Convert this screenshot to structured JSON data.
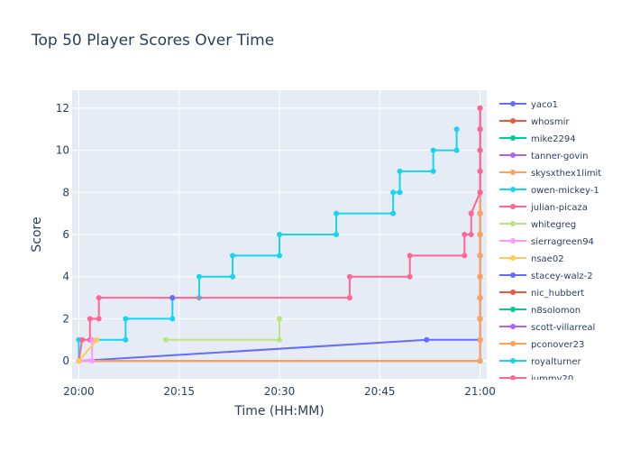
{
  "chart_data": {
    "type": "line",
    "title": "Top 50 Player Scores Over Time",
    "xlabel": "Time (HH:MM)",
    "ylabel": "Score",
    "x_ticks": [
      "20:00",
      "20:15",
      "20:30",
      "20:45",
      "21:00"
    ],
    "y_ticks": [
      0,
      2,
      4,
      6,
      8,
      10,
      12
    ],
    "xlim": [
      "19:59:00",
      "21:01:00"
    ],
    "ylim": [
      -0.85,
      12.85
    ],
    "grid": true,
    "legend_position": "right",
    "series": [
      {
        "name": "yaco1",
        "color": "#636efa",
        "points": [
          [
            "20:00:00",
            0
          ],
          [
            "20:52:00",
            1
          ],
          [
            "21:00:00",
            1
          ],
          [
            "21:00:00",
            2
          ],
          [
            "21:00:00",
            3
          ],
          [
            "21:00:00",
            4
          ],
          [
            "21:00:00",
            5
          ],
          [
            "21:00:00",
            6
          ],
          [
            "21:00:00",
            7
          ],
          [
            "21:00:00",
            8
          ],
          [
            "21:00:00",
            9
          ],
          [
            "21:00:00",
            10
          ],
          [
            "21:00:00",
            11
          ],
          [
            "21:00:00",
            12
          ]
        ]
      },
      {
        "name": "whosmir",
        "color": "#ef553b",
        "points": [
          [
            "20:00:00",
            0
          ],
          [
            "21:00:00",
            0
          ],
          [
            "21:00:00",
            1
          ],
          [
            "21:00:00",
            2
          ],
          [
            "21:00:00",
            3
          ],
          [
            "21:00:00",
            4
          ],
          [
            "21:00:00",
            5
          ],
          [
            "21:00:00",
            6
          ],
          [
            "21:00:00",
            7
          ],
          [
            "21:00:00",
            8
          ],
          [
            "21:00:00",
            9
          ],
          [
            "21:00:00",
            10
          ],
          [
            "21:00:00",
            11
          ],
          [
            "21:00:00",
            12
          ]
        ]
      },
      {
        "name": "mike2294",
        "color": "#00cc96",
        "points": [
          [
            "20:00:00",
            0
          ],
          [
            "21:00:00",
            0
          ],
          [
            "21:00:00",
            1
          ],
          [
            "21:00:00",
            2
          ],
          [
            "21:00:00",
            3
          ],
          [
            "21:00:00",
            4
          ],
          [
            "21:00:00",
            5
          ],
          [
            "21:00:00",
            6
          ],
          [
            "21:00:00",
            7
          ],
          [
            "21:00:00",
            8
          ],
          [
            "21:00:00",
            9
          ],
          [
            "21:00:00",
            10
          ],
          [
            "21:00:00",
            11
          ],
          [
            "21:00:00",
            12
          ]
        ]
      },
      {
        "name": "tanner-govin",
        "color": "#ab63fa",
        "points": [
          [
            "20:00:00",
            0
          ],
          [
            "21:00:00",
            0
          ],
          [
            "21:00:00",
            1
          ],
          [
            "21:00:00",
            2
          ],
          [
            "21:00:00",
            3
          ],
          [
            "21:00:00",
            4
          ],
          [
            "21:00:00",
            5
          ],
          [
            "21:00:00",
            6
          ],
          [
            "21:00:00",
            7
          ],
          [
            "21:00:00",
            8
          ],
          [
            "21:00:00",
            9
          ],
          [
            "21:00:00",
            10
          ],
          [
            "21:00:00",
            11
          ],
          [
            "21:00:00",
            12
          ]
        ]
      },
      {
        "name": "skysxthex1limit",
        "color": "#ffa15a",
        "points": [
          [
            "20:00:00",
            0
          ],
          [
            "21:00:00",
            0
          ],
          [
            "21:00:00",
            1
          ],
          [
            "21:00:00",
            2
          ],
          [
            "21:00:00",
            3
          ],
          [
            "21:00:00",
            4
          ],
          [
            "21:00:00",
            5
          ],
          [
            "21:00:00",
            6
          ],
          [
            "21:00:00",
            7
          ],
          [
            "21:00:00",
            8
          ],
          [
            "21:00:00",
            9
          ],
          [
            "21:00:00",
            10
          ],
          [
            "21:00:00",
            11
          ],
          [
            "21:00:00",
            12
          ]
        ]
      },
      {
        "name": "owen-mickey-1",
        "color": "#19d3f3",
        "points": [
          [
            "20:00:00",
            0
          ],
          [
            "20:00:00",
            1
          ],
          [
            "20:07:00",
            1
          ],
          [
            "20:07:00",
            2
          ],
          [
            "20:14:00",
            2
          ],
          [
            "20:14:00",
            3
          ],
          [
            "20:18:00",
            3
          ],
          [
            "20:18:00",
            4
          ],
          [
            "20:23:00",
            4
          ],
          [
            "20:23:00",
            5
          ],
          [
            "20:30:00",
            5
          ],
          [
            "20:30:00",
            6
          ],
          [
            "20:38:30",
            6
          ],
          [
            "20:38:30",
            7
          ],
          [
            "20:47:00",
            7
          ],
          [
            "20:47:00",
            8
          ],
          [
            "20:48:00",
            8
          ],
          [
            "20:48:00",
            9
          ],
          [
            "20:53:00",
            9
          ],
          [
            "20:53:00",
            10
          ],
          [
            "20:56:30",
            10
          ],
          [
            "20:56:30",
            11
          ]
        ]
      },
      {
        "name": "julian-picaza",
        "color": "#ff6692",
        "points": [
          [
            "20:00:00",
            0
          ],
          [
            "20:00:30",
            1
          ],
          [
            "20:01:40",
            1
          ],
          [
            "20:01:40",
            2
          ],
          [
            "20:03:00",
            2
          ],
          [
            "20:03:00",
            3
          ],
          [
            "20:40:30",
            3
          ],
          [
            "20:40:30",
            4
          ],
          [
            "20:49:30",
            4
          ],
          [
            "20:49:30",
            5
          ],
          [
            "20:57:40",
            5
          ],
          [
            "20:57:40",
            6
          ],
          [
            "20:58:40",
            6
          ],
          [
            "20:58:40",
            7
          ],
          [
            "20:58:40",
            7
          ],
          [
            "21:00:00",
            8
          ],
          [
            "21:00:00",
            9
          ],
          [
            "21:00:00",
            10
          ],
          [
            "21:00:00",
            11
          ],
          [
            "21:00:00",
            12
          ]
        ]
      },
      {
        "name": "whitegreg",
        "color": "#b6e880",
        "points": [
          [
            "20:13:00",
            1
          ],
          [
            "20:30:00",
            1
          ],
          [
            "20:30:00",
            2
          ]
        ]
      },
      {
        "name": "sierragreen94",
        "color": "#ff97ff",
        "points": [
          [
            "20:00:00",
            0
          ],
          [
            "20:02:00",
            0
          ],
          [
            "20:02:00",
            1
          ]
        ]
      },
      {
        "name": "nsae02",
        "color": "#fecb52",
        "points": [
          [
            "20:00:00",
            0
          ],
          [
            "20:02:40",
            1
          ]
        ]
      },
      {
        "name": "stacey-walz-2",
        "color": "#636efa",
        "points": [
          [
            "20:14:00",
            3
          ]
        ]
      },
      {
        "name": "nic_hubbert",
        "color": "#ef553b",
        "points": []
      },
      {
        "name": "n8solomon",
        "color": "#00cc96",
        "points": []
      },
      {
        "name": "scott-villarreal",
        "color": "#ab63fa",
        "points": []
      },
      {
        "name": "pconover23",
        "color": "#ffa15a",
        "points": []
      },
      {
        "name": "royalturner",
        "color": "#19d3f3",
        "points": []
      },
      {
        "name": "jummy20",
        "color": "#ff6692",
        "points": []
      }
    ]
  }
}
